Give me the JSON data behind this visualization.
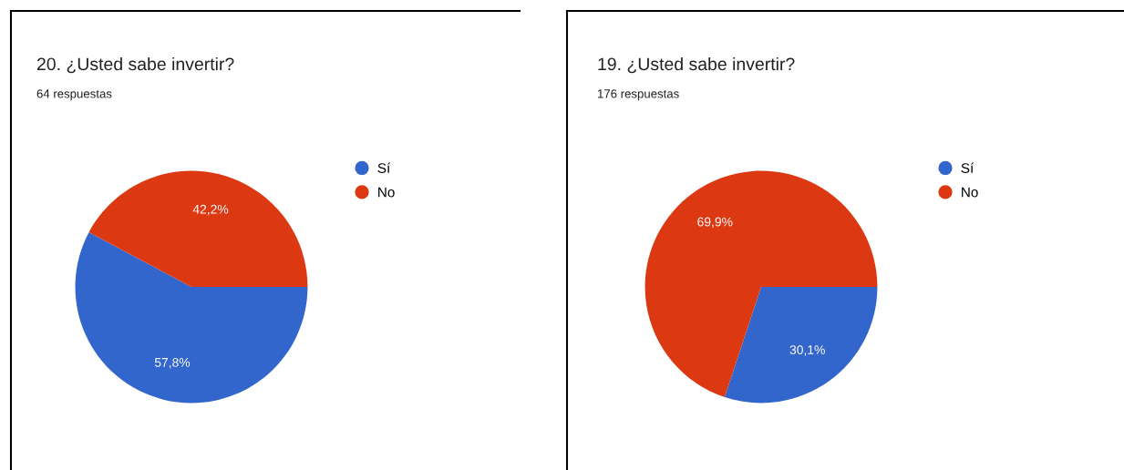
{
  "chart_data": [
    {
      "type": "pie",
      "title": "20. ¿Usted sabe invertir?",
      "subtitle": "64 respuestas",
      "categories": [
        "Sí",
        "No"
      ],
      "values": [
        57.8,
        42.2
      ],
      "colors": [
        "#3366cc",
        "#dc3912"
      ],
      "value_labels": [
        "57,8%",
        "42,2%"
      ],
      "legend": "top right"
    },
    {
      "type": "pie",
      "title": "19. ¿Usted sabe invertir?",
      "subtitle": "176 respuestas",
      "categories": [
        "Sí",
        "No"
      ],
      "values": [
        30.1,
        69.9
      ],
      "colors": [
        "#3366cc",
        "#dc3912"
      ],
      "value_labels": [
        "30,1%",
        "69,9%"
      ],
      "legend": "top right"
    }
  ]
}
